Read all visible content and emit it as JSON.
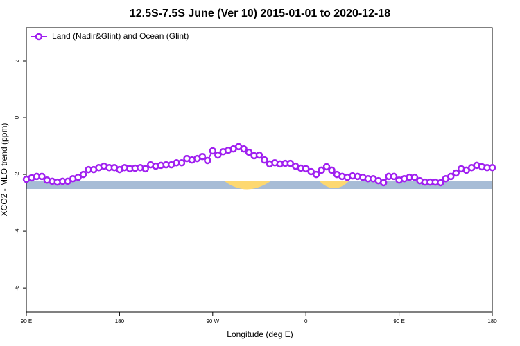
{
  "chart_data": {
    "type": "line",
    "title": "12.5S-7.5S June (Ver 10)   2015-01-01 to 2020-12-18",
    "xlabel": "Longitude (deg E)",
    "ylabel": "XCO2 - MLO trend (ppm)",
    "x": [
      90,
      95,
      100,
      105,
      110,
      115,
      120,
      125,
      130,
      135,
      140,
      145,
      150,
      155,
      160,
      165,
      170,
      175,
      180,
      185,
      190,
      195,
      200,
      205,
      210,
      215,
      220,
      225,
      230,
      235,
      240,
      245,
      250,
      255,
      260,
      265,
      270,
      275,
      280,
      285,
      290,
      295,
      300,
      305,
      310,
      315,
      320,
      325,
      330,
      335,
      340,
      345,
      350,
      355,
      360,
      365,
      370,
      375,
      380,
      385,
      390,
      395,
      400,
      405,
      410,
      415,
      420,
      425,
      430,
      435,
      440,
      445,
      450,
      455,
      460,
      465,
      470,
      475,
      480,
      485,
      490,
      495,
      500,
      505,
      510,
      515,
      520,
      525,
      530,
      535,
      540
    ],
    "series": [
      {
        "name": "Land (Nadir&Glint) and Ocean (Glint)",
        "color": "#a020f0",
        "values": [
          -2.17,
          -2.12,
          -2.07,
          -2.07,
          -2.2,
          -2.24,
          -2.27,
          -2.24,
          -2.24,
          -2.15,
          -2.1,
          -2.0,
          -1.83,
          -1.83,
          -1.76,
          -1.71,
          -1.76,
          -1.76,
          -1.83,
          -1.76,
          -1.8,
          -1.78,
          -1.76,
          -1.8,
          -1.66,
          -1.71,
          -1.68,
          -1.66,
          -1.66,
          -1.59,
          -1.59,
          -1.44,
          -1.49,
          -1.44,
          -1.37,
          -1.51,
          -1.17,
          -1.32,
          -1.2,
          -1.15,
          -1.1,
          -1.02,
          -1.1,
          -1.22,
          -1.34,
          -1.32,
          -1.49,
          -1.63,
          -1.59,
          -1.63,
          -1.61,
          -1.61,
          -1.71,
          -1.78,
          -1.8,
          -1.9,
          -2.0,
          -1.85,
          -1.73,
          -1.85,
          -2.0,
          -2.07,
          -2.1,
          -2.05,
          -2.07,
          -2.1,
          -2.15,
          -2.15,
          -2.22,
          -2.29,
          -2.07,
          -2.07,
          -2.2,
          -2.15,
          -2.1,
          -2.1,
          -2.22,
          -2.27,
          -2.27,
          -2.27,
          -2.29,
          -2.15,
          -2.07,
          -1.95,
          -1.8,
          -1.85,
          -1.76,
          -1.68,
          -1.73,
          -1.76,
          -1.76
        ]
      }
    ],
    "xlim": [
      90,
      540
    ],
    "xticks": [
      {
        "value": 90,
        "label": "90 E"
      },
      {
        "value": 180,
        "label": "180"
      },
      {
        "value": 270,
        "label": "90 W"
      },
      {
        "value": 360,
        "label": "0"
      },
      {
        "value": 450,
        "label": "90 E"
      },
      {
        "value": 540,
        "label": "180"
      }
    ],
    "ylim": [
      -6.85,
      3.17
    ],
    "yticks": [
      -6,
      -4,
      -2,
      0,
      2
    ],
    "legend": "upper left"
  }
}
